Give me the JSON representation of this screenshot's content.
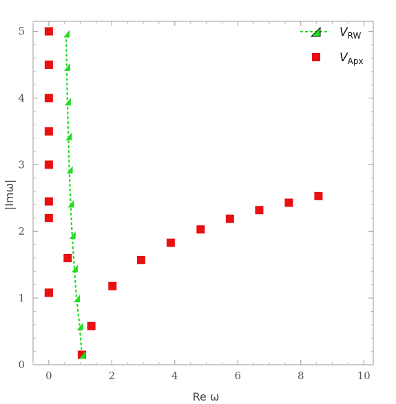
{
  "chart_data": {
    "type": "scatter",
    "xlabel": "Re ω",
    "ylabel": "|Imω|",
    "xlim": [
      -0.5,
      10.3
    ],
    "ylim": [
      0,
      5.15
    ],
    "xticks": [
      0,
      2,
      4,
      6,
      8,
      10
    ],
    "yticks": [
      0,
      1,
      2,
      3,
      4,
      5
    ],
    "xtick_labels": [
      "0",
      "2",
      "4",
      "6",
      "8",
      "10"
    ],
    "ytick_labels": [
      "0",
      "1",
      "2",
      "3",
      "4",
      "5"
    ],
    "grid": false,
    "legend_position": "top-right",
    "series": [
      {
        "name_main": "V",
        "name_sub": "RW",
        "style": "dashed-line-triangle",
        "color": "#22dd22",
        "x": [
          1.05,
          0.98,
          0.88,
          0.81,
          0.74,
          0.69,
          0.65,
          0.62,
          0.59,
          0.57,
          0.55
        ],
        "y": [
          0.15,
          0.58,
          1.0,
          1.45,
          1.95,
          2.42,
          2.93,
          3.43,
          3.95,
          4.47,
          4.97
        ]
      },
      {
        "name_main": "V",
        "name_sub": "Apx",
        "style": "square",
        "color": "#e81010",
        "x": [
          0,
          0,
          0,
          0,
          0,
          0,
          0,
          0,
          0,
          0.6,
          1.05,
          1.35,
          2.02,
          2.93,
          3.87,
          4.82,
          5.75,
          6.68,
          7.62,
          8.56
        ],
        "y": [
          5.0,
          4.5,
          4.0,
          3.5,
          3.0,
          2.45,
          2.2,
          1.08,
          1.08,
          1.6,
          0.15,
          0.58,
          1.18,
          1.57,
          1.83,
          2.03,
          2.19,
          2.32,
          2.43,
          2.53
        ]
      }
    ]
  }
}
